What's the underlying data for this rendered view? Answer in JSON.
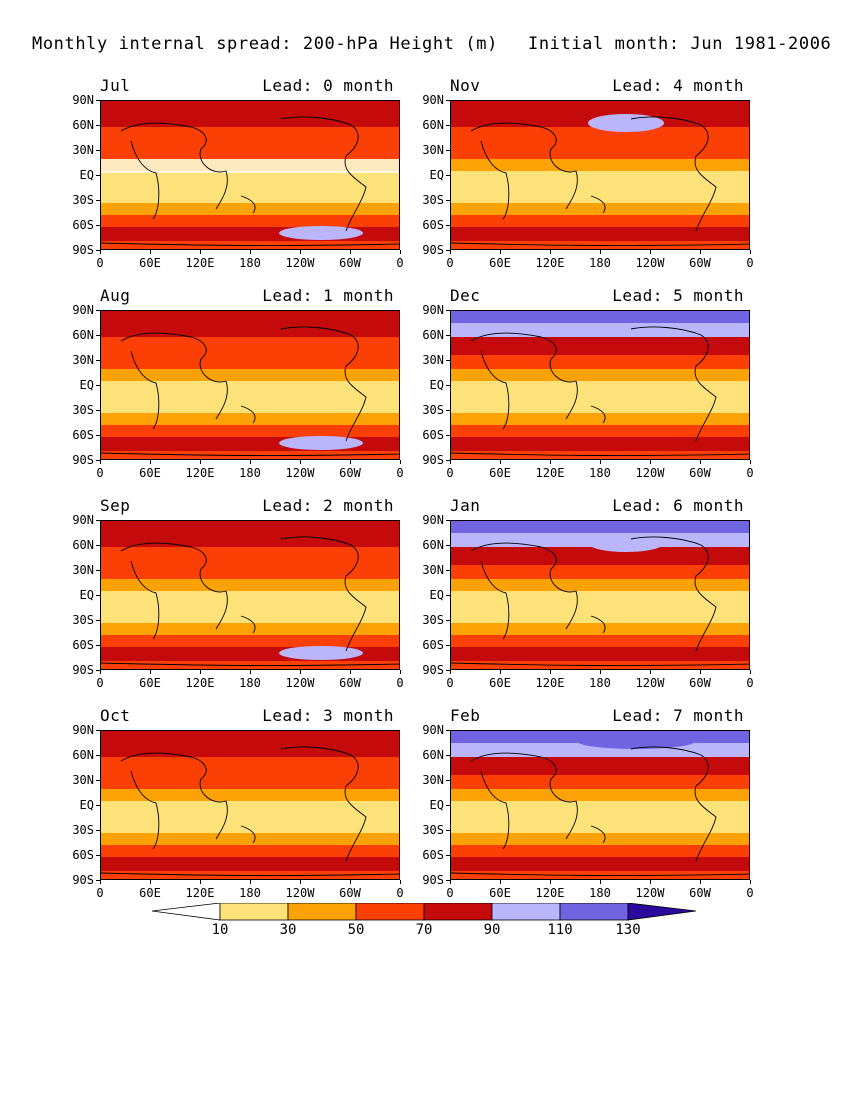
{
  "title_left": "Monthly internal spread: 200-hPa Height (m)",
  "title_right": "Initial month: Jun 1981-2006",
  "lat_labels": [
    "90N",
    "60N",
    "30N",
    "EQ",
    "30S",
    "60S",
    "90S"
  ],
  "lon_labels_default": [
    "0",
    "60E",
    "120E",
    "180",
    "120W",
    "60W",
    "0"
  ],
  "colors": {
    "lt10": "#ffffff",
    "b10_30": "#fde27a",
    "b30_50": "#fca204",
    "b50_70": "#fc3f04",
    "b70_90": "#c40a0a",
    "b90_110": "#bbb6fc",
    "b110_130": "#7064e0",
    "gt130": "#2a0a9c"
  },
  "panels": [
    {
      "month": "Jul",
      "lead": "Lead: 0 month"
    },
    {
      "month": "Nov",
      "lead": "Lead: 4 month"
    },
    {
      "month": "Aug",
      "lead": "Lead: 1 month"
    },
    {
      "month": "Dec",
      "lead": "Lead: 5 month"
    },
    {
      "month": "Sep",
      "lead": "Lead: 2 month"
    },
    {
      "month": "Jan",
      "lead": "Lead: 6 month"
    },
    {
      "month": "Oct",
      "lead": "Lead: 3 month"
    },
    {
      "month": "Feb",
      "lead": "Lead: 7 month",
      "lon_labels": [
        "0",
        "60E",
        "120E",
        "180",
        "120W",
        "60W",
        "0"
      ]
    }
  ],
  "colorbar": {
    "labels": [
      "10",
      "30",
      "50",
      "70",
      "90",
      "110",
      "130"
    ]
  }
}
